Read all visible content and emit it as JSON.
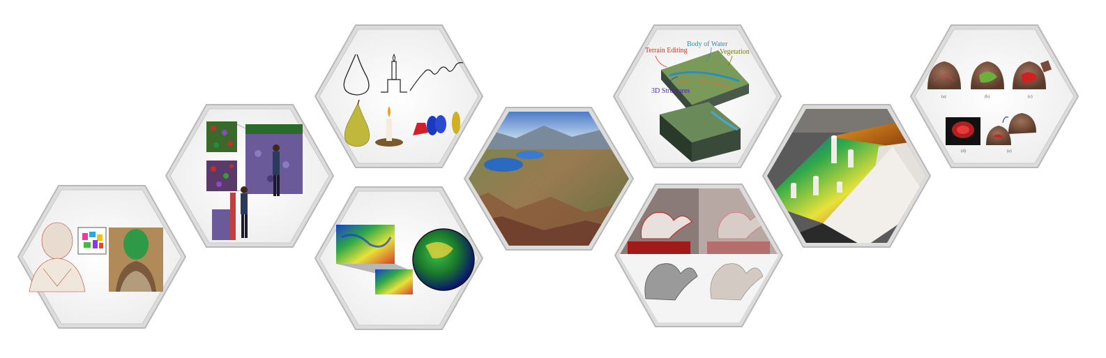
{
  "tiles": [
    {
      "id": "bust",
      "subject": "bust sculptures with segmentation patches"
    },
    {
      "id": "wall",
      "subject": "people assembling a textured wall"
    },
    {
      "id": "sketches",
      "subject": "line sketches and rendered 3D objects (pear, candle, spiral)"
    },
    {
      "id": "globe",
      "subject": "elevation maps and globe"
    },
    {
      "id": "terrain",
      "subject": "aerial terrain landscape with lakes"
    },
    {
      "id": "layers",
      "subject": "layered terrain model",
      "labels": {
        "terrain_editing": "Terrain Editing",
        "body_of_water": "Body of Water",
        "vegetation": "Vegetation",
        "structures": "3D Structures"
      }
    },
    {
      "id": "dragons",
      "subject": "dragon models"
    },
    {
      "id": "tabletop",
      "subject": "tabletop terrain with physical pillars"
    },
    {
      "id": "brains",
      "subject": "brain renderings",
      "captions": [
        "(a)",
        "(b)",
        "(c)",
        "(d)",
        "(e)"
      ]
    }
  ],
  "colors": {
    "hex_frame": "#b8b8b8",
    "hex_fill": "#fafafa",
    "label_red": "#c0392b",
    "label_cyan": "#2a8fb8",
    "label_olive": "#7a7a1a",
    "label_purple": "#4a2a9a"
  }
}
